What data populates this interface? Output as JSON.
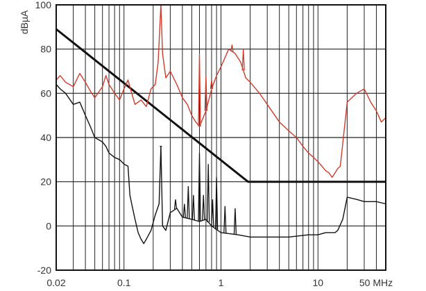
{
  "chart_data": {
    "type": "line",
    "ylabel": "dBµA",
    "x_scale": "log",
    "xlim": [
      0.02,
      50
    ],
    "ylim": [
      -20,
      100
    ],
    "y_ticks": [
      {
        "value": 100,
        "label": "100"
      },
      {
        "value": 80,
        "label": "80"
      },
      {
        "value": 60,
        "label": "60"
      },
      {
        "value": 40,
        "label": "40"
      },
      {
        "value": 20,
        "label": "20"
      },
      {
        "value": 0,
        "label": "0"
      },
      {
        "value": -20,
        "label": "-20"
      }
    ],
    "x_ticks": [
      {
        "value": 0.02,
        "label": "0.02"
      },
      {
        "value": 0.1,
        "label": "0.1"
      },
      {
        "value": 1,
        "label": "1"
      },
      {
        "value": 10,
        "label": "10"
      },
      {
        "value": 50,
        "label": "50 MHz"
      }
    ],
    "grid": true,
    "colors": {
      "limit": "#111111",
      "red": "#d23a2a",
      "black": "#111111",
      "grid": "#222222"
    },
    "series": [
      {
        "key": "limit",
        "x": [
          0.02,
          1.9,
          50
        ],
        "y": [
          89,
          20,
          20
        ]
      },
      {
        "key": "red",
        "x": [
          0.02,
          0.022,
          0.025,
          0.03,
          0.035,
          0.04,
          0.045,
          0.05,
          0.06,
          0.065,
          0.07,
          0.08,
          0.09,
          0.1,
          0.11,
          0.12,
          0.13,
          0.15,
          0.17,
          0.19,
          0.21,
          0.225,
          0.24,
          0.25,
          0.27,
          0.3,
          0.35,
          0.4,
          0.45,
          0.5,
          0.55,
          0.6,
          0.7,
          0.8,
          0.9,
          1.0,
          1.2,
          1.4,
          1.6,
          1.8,
          2.0,
          2.5,
          3,
          4,
          5,
          6,
          7,
          8,
          9,
          10,
          11,
          12,
          13,
          14,
          15,
          16,
          17,
          20,
          25,
          30,
          35,
          40,
          45,
          50
        ],
        "y": [
          66,
          68,
          65,
          63,
          69,
          65,
          61,
          58,
          63,
          68,
          64,
          60,
          57,
          62,
          66,
          60,
          55,
          57,
          54,
          62,
          64,
          74,
          100,
          78,
          67,
          70,
          64,
          58,
          55,
          50,
          47,
          45,
          52,
          62,
          68,
          72,
          80,
          78,
          74,
          67,
          65,
          60,
          55,
          47,
          43,
          40,
          36,
          33,
          31,
          29,
          27,
          25,
          24,
          22,
          24,
          26,
          27,
          56,
          60,
          62,
          56,
          52,
          47,
          49
        ]
      },
      {
        "key": "black",
        "x": [
          0.02,
          0.022,
          0.025,
          0.03,
          0.035,
          0.04,
          0.045,
          0.05,
          0.06,
          0.065,
          0.07,
          0.08,
          0.09,
          0.1,
          0.11,
          0.115,
          0.12,
          0.13,
          0.14,
          0.15,
          0.16,
          0.17,
          0.19,
          0.21,
          0.23,
          0.24,
          0.25,
          0.27,
          0.3,
          0.35,
          0.4,
          0.5,
          0.6,
          0.7,
          0.8,
          1.0,
          1.5,
          2,
          3,
          5,
          8,
          10,
          12,
          15,
          16,
          18,
          20,
          25,
          30,
          40,
          50
        ],
        "y": [
          64,
          62,
          60,
          55,
          56,
          50,
          45,
          40,
          38,
          36,
          33,
          31,
          30,
          28,
          27,
          14,
          10,
          3,
          -3,
          -6,
          -8,
          -6,
          -2,
          5,
          10,
          36,
          0,
          -2,
          6,
          8,
          4,
          3,
          2,
          3,
          0,
          -3,
          -4,
          -5,
          -5,
          -5,
          -4,
          -4,
          -3,
          -3,
          -2,
          3,
          13,
          12,
          11,
          11,
          10
        ]
      }
    ],
    "spikes_red": [
      {
        "x": 0.24,
        "y": 100
      },
      {
        "x": 0.6,
        "y": 78
      },
      {
        "x": 0.7,
        "y": 68
      },
      {
        "x": 0.8,
        "y": 66
      },
      {
        "x": 1.3,
        "y": 82
      },
      {
        "x": 1.7,
        "y": 80
      }
    ],
    "spikes_black": [
      {
        "x": 0.24,
        "y": 36
      },
      {
        "x": 0.34,
        "y": 12
      },
      {
        "x": 0.42,
        "y": 10
      },
      {
        "x": 0.46,
        "y": 18
      },
      {
        "x": 0.52,
        "y": 14
      },
      {
        "x": 0.6,
        "y": 33
      },
      {
        "x": 0.66,
        "y": 14
      },
      {
        "x": 0.74,
        "y": 28
      },
      {
        "x": 0.82,
        "y": 12
      },
      {
        "x": 0.9,
        "y": 22
      },
      {
        "x": 1.1,
        "y": 9
      },
      {
        "x": 1.4,
        "y": 8
      }
    ]
  }
}
